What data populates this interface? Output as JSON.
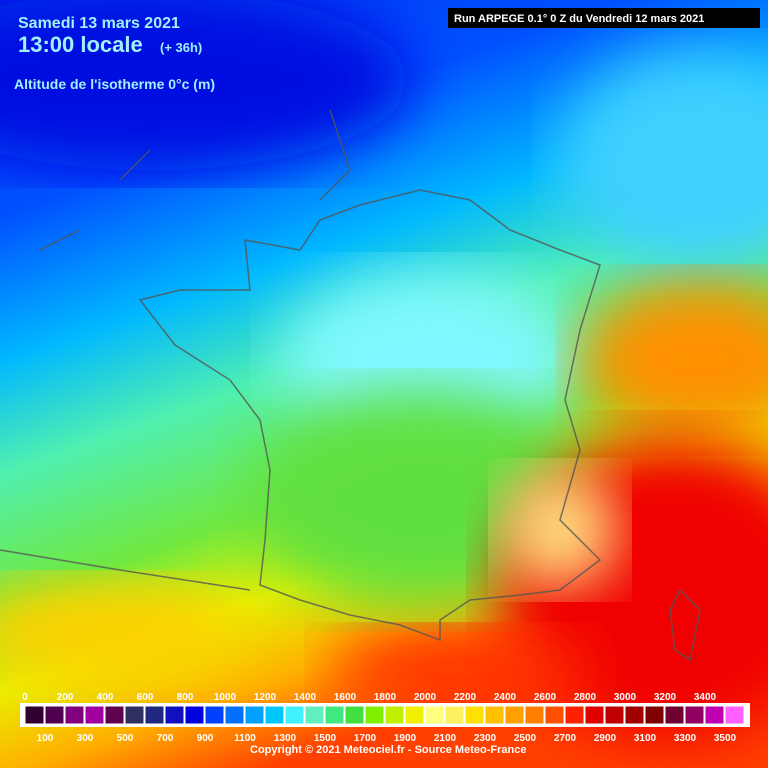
{
  "header": {
    "date": "Samedi 13 mars 2021",
    "time": "13:00 locale",
    "lead": "(+ 36h)",
    "parameter": "Altitude de l'isotherme 0°c (m)",
    "run": "Run ARPEGE 0.1° 0 Z du Vendredi 12 mars 2021"
  },
  "legend": {
    "ticks": [
      0,
      100,
      200,
      300,
      400,
      500,
      600,
      700,
      800,
      900,
      1000,
      1100,
      1200,
      1300,
      1400,
      1500,
      1600,
      1700,
      1800,
      1900,
      2000,
      2100,
      2200,
      2300,
      2400,
      2500,
      2600,
      2700,
      2800,
      2900,
      3000,
      3100,
      3200,
      3300,
      3400,
      3500
    ],
    "colors": [
      "#300030",
      "#500050",
      "#800080",
      "#a000a0",
      "#600050",
      "#303060",
      "#202880",
      "#1010c0",
      "#0000e0",
      "#0040ff",
      "#0070ff",
      "#00a0ff",
      "#00c8ff",
      "#40f0ff",
      "#60f0c0",
      "#40e880",
      "#40e040",
      "#80f000",
      "#c0f000",
      "#f0f000",
      "#ffff80",
      "#fff060",
      "#ffe000",
      "#ffc000",
      "#ffa000",
      "#ff8000",
      "#ff5000",
      "#ff2000",
      "#e00000",
      "#c00000",
      "#a00000",
      "#800000",
      "#700030",
      "#900060",
      "#c000b0",
      "#ff60ff"
    ]
  },
  "footer": {
    "copyright": "Copyright © 2021 Meteociel.fr - Source Meteo-France"
  }
}
